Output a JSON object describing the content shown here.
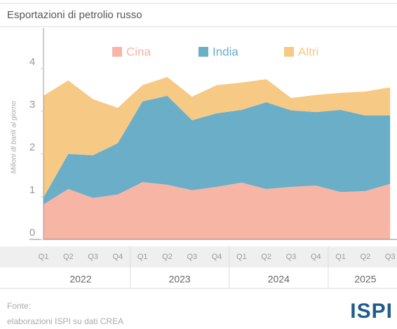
{
  "chart_data": {
    "type": "stacked_area",
    "title": "Esportazioni di petrolio russo",
    "y_label": "Milioni di barili al giorno",
    "categories": [
      "Q1",
      "Q2",
      "Q3",
      "Q4",
      "Q1",
      "Q2",
      "Q3",
      "Q4",
      "Q1",
      "Q2",
      "Q3",
      "Q4",
      "Q1",
      "Q2",
      "Q3"
    ],
    "years": [
      "2022",
      "2023",
      "2024",
      "2025"
    ],
    "series": [
      {
        "name": "Cina",
        "color": "#f7b5a6",
        "values": [
          0.82,
          1.18,
          0.97,
          1.05,
          1.34,
          1.28,
          1.15,
          1.23,
          1.33,
          1.18,
          1.23,
          1.26,
          1.11,
          1.13,
          1.3
        ]
      },
      {
        "name": "India",
        "color": "#6aaec7",
        "values": [
          0.16,
          0.82,
          1.0,
          1.2,
          1.89,
          2.08,
          1.64,
          1.72,
          1.7,
          2.03,
          1.79,
          1.72,
          1.92,
          1.77,
          1.6
        ]
      },
      {
        "name": "Altri",
        "color": "#f6c985",
        "values": [
          2.38,
          1.72,
          1.31,
          0.83,
          0.38,
          0.44,
          0.55,
          0.66,
          0.64,
          0.54,
          0.29,
          0.4,
          0.4,
          0.56,
          0.66
        ]
      }
    ],
    "ylim": [
      0,
      4.8
    ],
    "yticks": [
      0,
      1,
      2,
      3,
      4
    ],
    "grid": false,
    "legend": "top",
    "source_label": "Fonte:",
    "source": "elaborazioni ISPI su dati CREA",
    "logo": "ISPI"
  }
}
